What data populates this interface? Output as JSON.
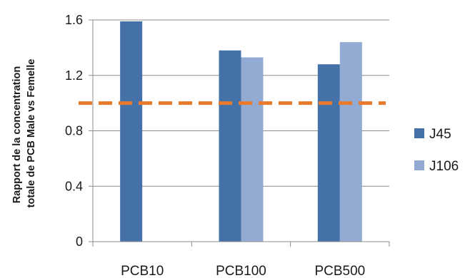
{
  "chart_data": {
    "type": "bar",
    "ylabel": [
      "Rapport de la concentration",
      "totale de PCB Male vs Femelle"
    ],
    "categories": [
      "PCB10",
      "PCB100",
      "PCB500"
    ],
    "series": [
      {
        "name": "J45",
        "values": [
          1.59,
          1.38,
          1.28
        ],
        "color": "#4472a8"
      },
      {
        "name": "J106",
        "values": [
          null,
          1.33,
          1.44
        ],
        "color": "#93aad2"
      }
    ],
    "ylim": [
      0,
      1.6
    ],
    "yticks": [
      0,
      0.4,
      0.8,
      1.2,
      1.6
    ],
    "ytick_labels": [
      "0",
      "0.4",
      "0.8",
      "1.2",
      "1.6"
    ],
    "reference_line": {
      "value": 1.0,
      "color": "#e87a2e",
      "style": "dashed"
    },
    "grid": "horizontal",
    "legend": "right"
  }
}
